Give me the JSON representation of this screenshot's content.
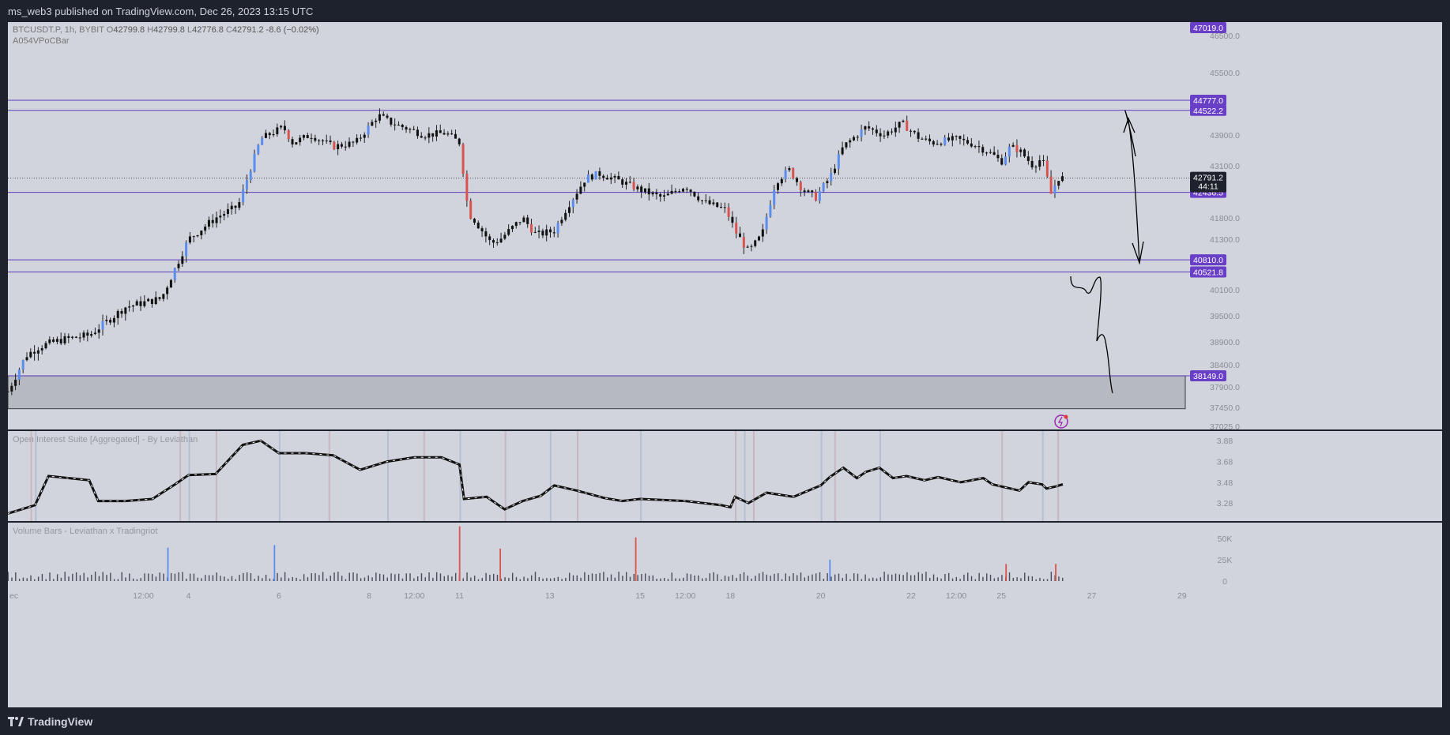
{
  "header": {
    "published_text": "ms_web3 published on TradingView.com, Dec 26, 2023 13:15 UTC"
  },
  "footer": {
    "brand": "TradingView"
  },
  "colors": {
    "background": "#d1d4dc",
    "level_line": "#5b3bbd",
    "label_bg": "#6a3fc7",
    "candle_up": "#5b8def",
    "candle_down": "#d9534f",
    "candle_neutral": "#111111",
    "zone_fill": "#b7b9c1"
  },
  "main_pane": {
    "symbol_line": {
      "symbol": "BTCUSDT.P, 1h, BYBIT",
      "open_label": "O",
      "open": "42799.8",
      "high_label": "H",
      "high": "42799.8",
      "low_label": "L",
      "low": "42776.8",
      "close_label": "C",
      "close": "42791.2",
      "change": "-8.6 (−0.02%)"
    },
    "indicator_name": "A054VPoCBar",
    "current_price": "42791.2",
    "countdown": "44:11"
  },
  "oi_pane": {
    "title": "Open Interest Suite [Aggregated] - By Leviathan"
  },
  "volume_pane": {
    "title": "Volume Bars - Leviathan x Tradingriot"
  },
  "chart_data": [
    {
      "type": "line",
      "title": "BTCUSDT.P, 1h, BYBIT",
      "ylim": [
        37025,
        47019
      ],
      "y_ticks": [
        37025.0,
        37450.0,
        37900.0,
        38400.0,
        38900.0,
        39500.0,
        40100.0,
        41300.0,
        41800.0,
        43100.0,
        43900.0,
        45500.0,
        46500.0
      ],
      "y_tick_labels": [
        "37025.0",
        "37450.0",
        "37900.0",
        "38400.0",
        "38900.0",
        "39500.0",
        "40100.0",
        "41300.0",
        "41800.0",
        "43100.0",
        "43900.0",
        "45500.0",
        "46500.0"
      ],
      "x_tick_labels": [
        "ec",
        "12:00",
        "4",
        "6",
        "8",
        "12:00",
        "11",
        "13",
        "15",
        "12:00",
        "18",
        "20",
        "22",
        "12:00",
        "25",
        "27",
        "29"
      ],
      "x_tick_days": [
        1.0,
        1.5,
        2.0,
        3.0,
        4.0,
        4.5,
        5.0,
        6.0,
        7.0,
        7.5,
        8.0,
        9.0,
        10.0,
        10.5,
        11.0,
        12.0,
        13.0
      ],
      "levels": [
        {
          "label": "47019.0",
          "value": 47019.0,
          "draw_line": false
        },
        {
          "label": "44777.0",
          "value": 44777.0,
          "draw_line": true
        },
        {
          "label": "44522.2",
          "value": 44522.2,
          "draw_line": true
        },
        {
          "label": "42436.5",
          "value": 42436.5,
          "draw_line": true
        },
        {
          "label": "40810.0",
          "value": 40810.0,
          "draw_line": true
        },
        {
          "label": "40521.8",
          "value": 40521.8,
          "draw_line": true
        },
        {
          "label": "38149.0",
          "value": 38149.0,
          "draw_line": true
        }
      ],
      "zone": {
        "from": 37420,
        "to": 38149
      },
      "price_series": {
        "x_days": [
          0.0,
          0.2,
          0.35,
          0.6,
          0.9,
          1.3,
          1.7,
          1.85,
          2.0,
          2.3,
          2.55,
          2.8,
          3.05,
          3.15,
          3.35,
          3.6,
          3.85,
          4.1,
          4.25,
          4.5,
          4.6,
          4.85,
          5.0,
          5.1,
          5.15,
          5.35,
          5.45,
          5.7,
          5.85,
          6.05,
          6.2,
          6.4,
          6.55,
          6.8,
          7.0,
          7.25,
          7.5,
          7.7,
          7.95,
          8.05,
          8.2,
          8.35,
          8.5,
          8.65,
          8.8,
          8.95,
          9.0,
          9.1,
          9.25,
          9.5,
          9.7,
          9.9,
          10.1,
          10.25,
          10.5,
          10.7,
          10.9,
          11.0,
          11.1,
          11.2,
          11.35,
          11.45,
          11.55,
          11.63,
          11.68
        ],
        "close": [
          37800,
          38600,
          38800,
          38950,
          39050,
          39700,
          39900,
          40600,
          41300,
          41800,
          42100,
          43800,
          44100,
          43700,
          43900,
          43600,
          43700,
          44400,
          44200,
          44000,
          43900,
          43950,
          43700,
          41900,
          41800,
          41200,
          41300,
          41800,
          41400,
          41500,
          42100,
          42800,
          42900,
          42700,
          42500,
          42300,
          42600,
          42200,
          42000,
          41500,
          41000,
          41400,
          42700,
          43000,
          42500,
          42300,
          42500,
          42800,
          43600,
          44100,
          43900,
          44200,
          43800,
          43700,
          43800,
          43650,
          43400,
          43200,
          43600,
          43500,
          43100,
          43300,
          42400,
          42800,
          42791
        ]
      }
    },
    {
      "type": "line",
      "title": "Open Interest Suite [Aggregated] - By Leviathan",
      "ylim": [
        3.13,
        3.95
      ],
      "y_ticks": [
        3.28,
        3.48,
        3.68,
        3.88
      ],
      "y_tick_labels": [
        "3.28",
        "3.48",
        "3.68",
        "3.88"
      ],
      "series": [
        {
          "x_days": [
            0.0,
            0.3,
            0.45,
            0.9,
            1.0,
            1.3,
            1.6,
            1.85,
            2.0,
            2.3,
            2.6,
            2.8,
            3.0,
            3.3,
            3.6,
            3.9,
            4.2,
            4.5,
            4.8,
            5.0,
            5.05,
            5.3,
            5.5,
            5.7,
            5.9,
            6.05,
            6.3,
            6.6,
            6.8,
            7.0,
            7.5,
            7.9,
            8.0,
            8.05,
            8.2,
            8.4,
            8.7,
            9.0,
            9.1,
            9.25,
            9.4,
            9.5,
            9.65,
            9.8,
            9.95,
            10.15,
            10.3,
            10.55,
            10.8,
            10.9,
            11.0,
            11.2,
            11.3,
            11.45,
            11.5,
            11.6,
            11.68
          ],
          "values": [
            3.18,
            3.26,
            3.54,
            3.5,
            3.3,
            3.3,
            3.32,
            3.46,
            3.55,
            3.56,
            3.84,
            3.88,
            3.76,
            3.76,
            3.74,
            3.6,
            3.68,
            3.72,
            3.72,
            3.65,
            3.32,
            3.34,
            3.22,
            3.3,
            3.35,
            3.45,
            3.4,
            3.33,
            3.3,
            3.32,
            3.3,
            3.26,
            3.24,
            3.34,
            3.28,
            3.38,
            3.34,
            3.45,
            3.53,
            3.62,
            3.52,
            3.58,
            3.62,
            3.52,
            3.54,
            3.5,
            3.53,
            3.48,
            3.52,
            3.46,
            3.44,
            3.4,
            3.48,
            3.46,
            3.42,
            3.44,
            3.46
          ]
        }
      ]
    },
    {
      "type": "bar",
      "title": "Volume Bars - Leviathan x Tradingriot",
      "ylim": [
        0,
        60000
      ],
      "y_ticks": [
        0,
        25000,
        50000
      ],
      "y_tick_labels": [
        "0",
        "25K",
        "50K"
      ],
      "spikes": [
        {
          "x_day": 1.77,
          "value": 39000,
          "dir": "up"
        },
        {
          "x_day": 2.95,
          "value": 42000,
          "dir": "up"
        },
        {
          "x_day": 5.0,
          "value": 64000,
          "dir": "down"
        },
        {
          "x_day": 5.45,
          "value": 38000,
          "dir": "down"
        },
        {
          "x_day": 6.95,
          "value": 51000,
          "dir": "down"
        },
        {
          "x_day": 9.1,
          "value": 25000,
          "dir": "up"
        },
        {
          "x_day": 11.05,
          "value": 20000,
          "dir": "down"
        },
        {
          "x_day": 11.6,
          "value": 20000,
          "dir": "down"
        }
      ]
    }
  ]
}
